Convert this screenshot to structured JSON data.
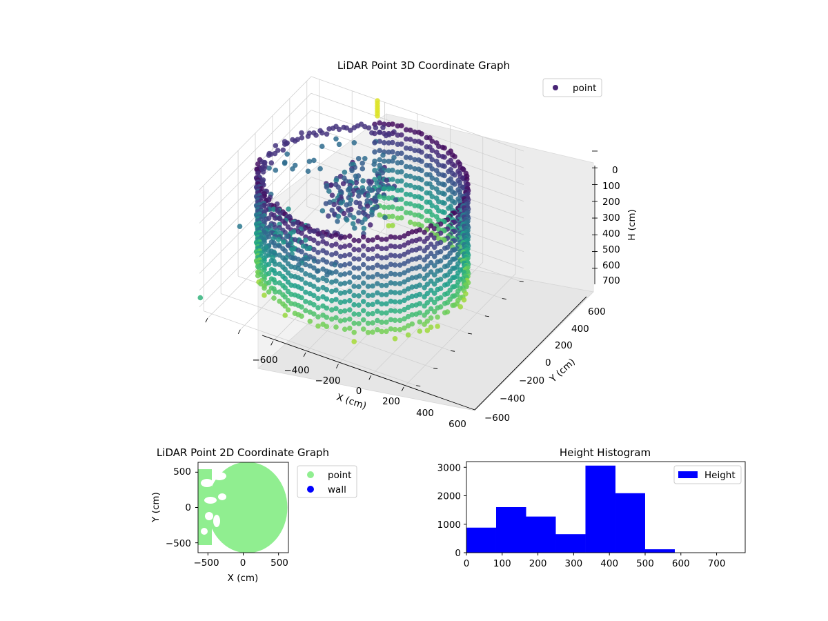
{
  "chart_data": [
    {
      "type": "scatter",
      "projection": "3d",
      "title": "LiDAR Point 3D Coordinate Graph",
      "xlabel": "X (cm)",
      "ylabel": "Y (cm)",
      "zlabel": "H (cm)",
      "xticks": [
        "−600",
        "−400",
        "−200",
        "0",
        "200",
        "400",
        "600"
      ],
      "yticks": [
        "−600",
        "−400",
        "−200",
        "0",
        "200",
        "400",
        "600"
      ],
      "zticks": [
        "0",
        "100",
        "200",
        "300",
        "400",
        "500",
        "600",
        "700"
      ],
      "xlim": [
        -650,
        650
      ],
      "ylim": [
        -650,
        650
      ],
      "zlim": [
        0,
        750
      ],
      "z_inverted": true,
      "grid": true,
      "legend": {
        "position": "upper-right",
        "entries": [
          {
            "label": "point",
            "color": "#482475"
          }
        ]
      },
      "colormap": "viridis",
      "series": [
        {
          "name": "point"
        }
      ]
    },
    {
      "type": "scatter",
      "title": "LiDAR Point 2D Coordinate Graph",
      "xlabel": "X (cm)",
      "ylabel": "Y (cm)",
      "xticks": [
        "−500",
        "0",
        "500"
      ],
      "yticks": [
        "500",
        "0",
        "−500"
      ],
      "xlim": [
        -640,
        640
      ],
      "ylim": [
        -640,
        640
      ],
      "grid": false,
      "legend": {
        "position": "outside-right",
        "entries": [
          {
            "label": "point",
            "color": "#90ee90"
          },
          {
            "label": "wall",
            "color": "#0000ff"
          }
        ]
      },
      "series": [
        {
          "name": "point",
          "color": "#90ee90"
        },
        {
          "name": "wall",
          "color": "#0000ff"
        }
      ]
    },
    {
      "type": "bar",
      "subtype": "histogram",
      "title": "Height Histogram",
      "xlabel": "",
      "ylabel": "",
      "xlim": [
        0,
        780
      ],
      "ylim": [
        0,
        3200
      ],
      "xticks": [
        "0",
        "100",
        "200",
        "300",
        "400",
        "500",
        "600",
        "700"
      ],
      "yticks": [
        "0",
        "1000",
        "2000",
        "3000"
      ],
      "bin_edges": [
        0,
        83,
        167,
        250,
        333,
        417,
        500,
        583,
        667,
        750
      ],
      "values": [
        880,
        1600,
        1270,
        650,
        3060,
        2090,
        120,
        0,
        0
      ],
      "color": "#0000ff",
      "legend": {
        "position": "upper-right",
        "entries": [
          {
            "label": "Height",
            "color": "#0000ff"
          }
        ]
      },
      "series": [
        {
          "name": "Height",
          "values": [
            880,
            1600,
            1270,
            650,
            3060,
            2090,
            120,
            0,
            0
          ]
        }
      ]
    }
  ]
}
